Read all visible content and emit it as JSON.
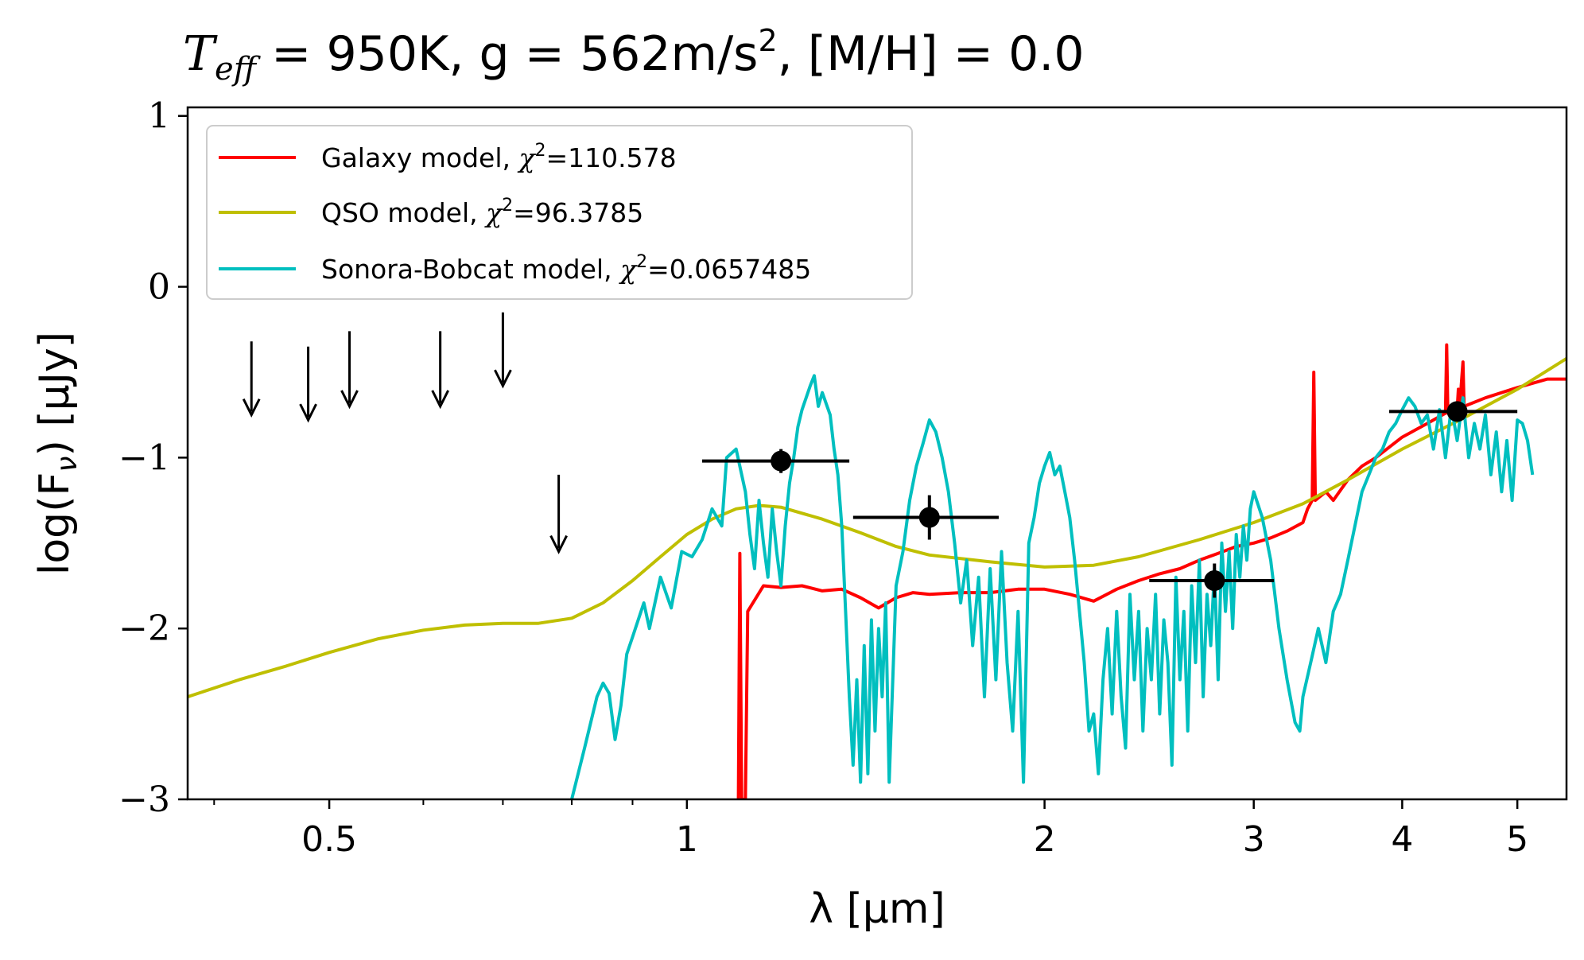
{
  "chart_data": {
    "type": "line",
    "title_parts": {
      "t_symbol": "T",
      "t_sub": "eff",
      "rest_a": " = 950K, g = 562m/s",
      "rest_sup": "2",
      "rest_b": ", [M/H] = 0.0"
    },
    "xlabel": "λ [μm]",
    "ylabel": "log(F",
    "ylabel_sub": "ν",
    "ylabel_tail": ") [μJy]",
    "xscale": "log",
    "xlim": [
      0.38,
      5.5
    ],
    "ylim": [
      -3,
      1.05
    ],
    "x_major_ticks": [
      {
        "value": 0.5,
        "label": "0.5"
      },
      {
        "value": 1,
        "label": "1"
      },
      {
        "value": 2,
        "label": "2"
      },
      {
        "value": 3,
        "label": "3"
      },
      {
        "value": 4,
        "label": "4"
      },
      {
        "value": 5,
        "label": "5"
      }
    ],
    "x_minor_ticks": [
      0.4,
      0.6,
      0.7,
      0.8,
      0.9
    ],
    "y_ticks": [
      {
        "value": 1,
        "label": "1"
      },
      {
        "value": 0,
        "label": "0"
      },
      {
        "value": -1,
        "label": "−1"
      },
      {
        "value": -2,
        "label": "−2"
      },
      {
        "value": -3,
        "label": "−3"
      }
    ],
    "legend_position": "upper-left",
    "series": [
      {
        "key": "galaxy",
        "legend_label": "Galaxy model, ",
        "chi_value": "=110.578",
        "color": "#ff0000",
        "points": [
          [
            1.105,
            -3.0
          ],
          [
            1.108,
            -1.56
          ],
          [
            1.112,
            -3.0
          ],
          [
            1.12,
            -3.0
          ],
          [
            1.125,
            -1.9
          ],
          [
            1.16,
            -1.75
          ],
          [
            1.2,
            -1.76
          ],
          [
            1.25,
            -1.75
          ],
          [
            1.3,
            -1.78
          ],
          [
            1.35,
            -1.77
          ],
          [
            1.4,
            -1.82
          ],
          [
            1.45,
            -1.88
          ],
          [
            1.5,
            -1.82
          ],
          [
            1.55,
            -1.79
          ],
          [
            1.6,
            -1.8
          ],
          [
            1.7,
            -1.79
          ],
          [
            1.8,
            -1.79
          ],
          [
            1.9,
            -1.77
          ],
          [
            2.0,
            -1.77
          ],
          [
            2.1,
            -1.8
          ],
          [
            2.2,
            -1.84
          ],
          [
            2.3,
            -1.77
          ],
          [
            2.4,
            -1.72
          ],
          [
            2.5,
            -1.68
          ],
          [
            2.6,
            -1.65
          ],
          [
            2.7,
            -1.6
          ],
          [
            2.8,
            -1.56
          ],
          [
            2.9,
            -1.52
          ],
          [
            3.0,
            -1.5
          ],
          [
            3.1,
            -1.47
          ],
          [
            3.2,
            -1.43
          ],
          [
            3.3,
            -1.38
          ],
          [
            3.33,
            -1.3
          ],
          [
            3.36,
            -1.25
          ],
          [
            3.37,
            -0.5
          ],
          [
            3.38,
            -1.25
          ],
          [
            3.45,
            -1.2
          ],
          [
            3.5,
            -1.25
          ],
          [
            3.6,
            -1.13
          ],
          [
            3.7,
            -1.05
          ],
          [
            3.8,
            -1.0
          ],
          [
            4.0,
            -0.88
          ],
          [
            4.2,
            -0.8
          ],
          [
            4.35,
            -0.74
          ],
          [
            4.36,
            -0.34
          ],
          [
            4.37,
            -0.74
          ],
          [
            4.45,
            -0.72
          ],
          [
            4.46,
            -0.6
          ],
          [
            4.47,
            -0.71
          ],
          [
            4.5,
            -0.44
          ],
          [
            4.51,
            -0.7
          ],
          [
            4.7,
            -0.65
          ],
          [
            5.0,
            -0.59
          ],
          [
            5.3,
            -0.54
          ],
          [
            5.5,
            -0.54
          ]
        ]
      },
      {
        "key": "qso",
        "legend_label": "QSO model, ",
        "chi_value": "=96.3785",
        "color": "#bfbf00",
        "points": [
          [
            0.38,
            -2.4
          ],
          [
            0.42,
            -2.3
          ],
          [
            0.46,
            -2.22
          ],
          [
            0.5,
            -2.14
          ],
          [
            0.55,
            -2.06
          ],
          [
            0.6,
            -2.01
          ],
          [
            0.65,
            -1.98
          ],
          [
            0.7,
            -1.97
          ],
          [
            0.75,
            -1.97
          ],
          [
            0.8,
            -1.94
          ],
          [
            0.85,
            -1.85
          ],
          [
            0.9,
            -1.72
          ],
          [
            0.95,
            -1.58
          ],
          [
            1.0,
            -1.45
          ],
          [
            1.05,
            -1.36
          ],
          [
            1.1,
            -1.3
          ],
          [
            1.15,
            -1.28
          ],
          [
            1.2,
            -1.29
          ],
          [
            1.3,
            -1.36
          ],
          [
            1.4,
            -1.44
          ],
          [
            1.5,
            -1.52
          ],
          [
            1.6,
            -1.57
          ],
          [
            1.8,
            -1.61
          ],
          [
            2.0,
            -1.64
          ],
          [
            2.2,
            -1.63
          ],
          [
            2.4,
            -1.58
          ],
          [
            2.7,
            -1.48
          ],
          [
            3.0,
            -1.38
          ],
          [
            3.3,
            -1.27
          ],
          [
            3.6,
            -1.13
          ],
          [
            4.0,
            -0.95
          ],
          [
            4.5,
            -0.77
          ],
          [
            5.0,
            -0.6
          ],
          [
            5.5,
            -0.42
          ]
        ]
      },
      {
        "key": "sonora",
        "legend_label": "Sonora-Bobcat model, ",
        "chi_value": "=0.0657485",
        "color": "#00bfbf",
        "points": [
          [
            0.8,
            -3.0
          ],
          [
            0.82,
            -2.7
          ],
          [
            0.84,
            -2.4
          ],
          [
            0.85,
            -2.32
          ],
          [
            0.86,
            -2.38
          ],
          [
            0.87,
            -2.65
          ],
          [
            0.88,
            -2.45
          ],
          [
            0.89,
            -2.15
          ],
          [
            0.9,
            -2.05
          ],
          [
            0.92,
            -1.85
          ],
          [
            0.93,
            -2.0
          ],
          [
            0.95,
            -1.7
          ],
          [
            0.97,
            -1.88
          ],
          [
            0.99,
            -1.55
          ],
          [
            1.01,
            -1.58
          ],
          [
            1.03,
            -1.48
          ],
          [
            1.05,
            -1.3
          ],
          [
            1.07,
            -1.4
          ],
          [
            1.08,
            -1.0
          ],
          [
            1.1,
            -0.95
          ],
          [
            1.12,
            -1.2
          ],
          [
            1.13,
            -1.45
          ],
          [
            1.14,
            -1.65
          ],
          [
            1.15,
            -1.25
          ],
          [
            1.16,
            -1.5
          ],
          [
            1.17,
            -1.7
          ],
          [
            1.18,
            -1.3
          ],
          [
            1.19,
            -1.55
          ],
          [
            1.2,
            -1.75
          ],
          [
            1.21,
            -1.4
          ],
          [
            1.22,
            -1.15
          ],
          [
            1.23,
            -1.0
          ],
          [
            1.24,
            -0.82
          ],
          [
            1.25,
            -0.72
          ],
          [
            1.27,
            -0.58
          ],
          [
            1.28,
            -0.52
          ],
          [
            1.29,
            -0.7
          ],
          [
            1.3,
            -0.62
          ],
          [
            1.32,
            -0.75
          ],
          [
            1.33,
            -0.95
          ],
          [
            1.34,
            -1.1
          ],
          [
            1.35,
            -1.4
          ],
          [
            1.36,
            -1.9
          ],
          [
            1.37,
            -2.4
          ],
          [
            1.38,
            -2.8
          ],
          [
            1.39,
            -2.3
          ],
          [
            1.4,
            -2.9
          ],
          [
            1.41,
            -2.1
          ],
          [
            1.42,
            -2.85
          ],
          [
            1.43,
            -1.95
          ],
          [
            1.44,
            -2.6
          ],
          [
            1.45,
            -2.0
          ],
          [
            1.46,
            -2.4
          ],
          [
            1.47,
            -1.85
          ],
          [
            1.48,
            -2.9
          ],
          [
            1.5,
            -1.75
          ],
          [
            1.52,
            -1.55
          ],
          [
            1.54,
            -1.25
          ],
          [
            1.56,
            -1.05
          ],
          [
            1.58,
            -0.92
          ],
          [
            1.6,
            -0.78
          ],
          [
            1.62,
            -0.85
          ],
          [
            1.64,
            -1.0
          ],
          [
            1.66,
            -1.2
          ],
          [
            1.68,
            -1.5
          ],
          [
            1.7,
            -1.85
          ],
          [
            1.72,
            -1.6
          ],
          [
            1.74,
            -2.1
          ],
          [
            1.76,
            -1.7
          ],
          [
            1.78,
            -2.4
          ],
          [
            1.8,
            -1.65
          ],
          [
            1.82,
            -2.3
          ],
          [
            1.84,
            -1.55
          ],
          [
            1.86,
            -2.2
          ],
          [
            1.88,
            -2.6
          ],
          [
            1.9,
            -1.9
          ],
          [
            1.92,
            -2.9
          ],
          [
            1.94,
            -1.5
          ],
          [
            1.96,
            -1.35
          ],
          [
            1.98,
            -1.15
          ],
          [
            2.0,
            -1.05
          ],
          [
            2.02,
            -0.97
          ],
          [
            2.04,
            -1.1
          ],
          [
            2.06,
            -1.05
          ],
          [
            2.08,
            -1.2
          ],
          [
            2.1,
            -1.35
          ],
          [
            2.12,
            -1.6
          ],
          [
            2.14,
            -1.9
          ],
          [
            2.16,
            -2.2
          ],
          [
            2.18,
            -2.6
          ],
          [
            2.2,
            -2.5
          ],
          [
            2.22,
            -2.85
          ],
          [
            2.24,
            -2.3
          ],
          [
            2.26,
            -2.0
          ],
          [
            2.28,
            -2.5
          ],
          [
            2.3,
            -1.9
          ],
          [
            2.32,
            -2.4
          ],
          [
            2.34,
            -2.7
          ],
          [
            2.36,
            -1.8
          ],
          [
            2.38,
            -2.3
          ],
          [
            2.4,
            -1.9
          ],
          [
            2.42,
            -2.6
          ],
          [
            2.44,
            -2.0
          ],
          [
            2.46,
            -2.3
          ],
          [
            2.48,
            -1.8
          ],
          [
            2.5,
            -2.5
          ],
          [
            2.52,
            -1.95
          ],
          [
            2.54,
            -2.2
          ],
          [
            2.56,
            -2.8
          ],
          [
            2.58,
            -1.7
          ],
          [
            2.6,
            -2.3
          ],
          [
            2.62,
            -1.9
          ],
          [
            2.64,
            -2.6
          ],
          [
            2.66,
            -1.75
          ],
          [
            2.68,
            -2.2
          ],
          [
            2.7,
            -1.6
          ],
          [
            2.72,
            -2.4
          ],
          [
            2.74,
            -1.8
          ],
          [
            2.76,
            -2.1
          ],
          [
            2.78,
            -1.65
          ],
          [
            2.8,
            -2.3
          ],
          [
            2.82,
            -1.5
          ],
          [
            2.84,
            -1.9
          ],
          [
            2.86,
            -1.55
          ],
          [
            2.88,
            -2.0
          ],
          [
            2.9,
            -1.45
          ],
          [
            2.92,
            -1.7
          ],
          [
            2.94,
            -1.4
          ],
          [
            2.96,
            -1.6
          ],
          [
            2.98,
            -1.3
          ],
          [
            3.0,
            -1.2
          ],
          [
            3.05,
            -1.35
          ],
          [
            3.1,
            -1.6
          ],
          [
            3.15,
            -2.0
          ],
          [
            3.2,
            -2.3
          ],
          [
            3.25,
            -2.55
          ],
          [
            3.28,
            -2.6
          ],
          [
            3.3,
            -2.4
          ],
          [
            3.35,
            -2.2
          ],
          [
            3.4,
            -2.0
          ],
          [
            3.45,
            -2.2
          ],
          [
            3.5,
            -1.9
          ],
          [
            3.55,
            -1.8
          ],
          [
            3.6,
            -1.6
          ],
          [
            3.65,
            -1.4
          ],
          [
            3.7,
            -1.2
          ],
          [
            3.75,
            -1.1
          ],
          [
            3.8,
            -1.0
          ],
          [
            3.85,
            -0.95
          ],
          [
            3.9,
            -0.85
          ],
          [
            3.95,
            -0.8
          ],
          [
            4.0,
            -0.72
          ],
          [
            4.05,
            -0.65
          ],
          [
            4.1,
            -0.7
          ],
          [
            4.15,
            -0.8
          ],
          [
            4.2,
            -0.75
          ],
          [
            4.25,
            -0.95
          ],
          [
            4.3,
            -0.72
          ],
          [
            4.35,
            -1.0
          ],
          [
            4.4,
            -0.7
          ],
          [
            4.45,
            -0.9
          ],
          [
            4.5,
            -0.65
          ],
          [
            4.55,
            -1.0
          ],
          [
            4.6,
            -0.8
          ],
          [
            4.65,
            -0.95
          ],
          [
            4.7,
            -0.75
          ],
          [
            4.75,
            -1.1
          ],
          [
            4.8,
            -0.85
          ],
          [
            4.85,
            -1.2
          ],
          [
            4.9,
            -0.9
          ],
          [
            4.95,
            -1.25
          ],
          [
            5.0,
            -0.78
          ],
          [
            5.05,
            -0.8
          ],
          [
            5.1,
            -0.9
          ],
          [
            5.15,
            -1.1
          ]
        ]
      }
    ],
    "data_points": [
      {
        "x": 1.2,
        "y": -1.02,
        "xlo": 1.03,
        "xhi": 1.37,
        "yerr": 0.07
      },
      {
        "x": 1.6,
        "y": -1.35,
        "xlo": 1.38,
        "xhi": 1.83,
        "yerr": 0.13
      },
      {
        "x": 2.78,
        "y": -1.72,
        "xlo": 2.45,
        "xhi": 3.12,
        "yerr": 0.1
      },
      {
        "x": 4.45,
        "y": -0.73,
        "xlo": 3.9,
        "xhi": 5.0,
        "yerr": 0.04
      }
    ],
    "upper_limits": [
      {
        "x": 0.43,
        "y_top": -0.32,
        "y_bottom": -0.75
      },
      {
        "x": 0.48,
        "y_top": -0.35,
        "y_bottom": -0.78
      },
      {
        "x": 0.52,
        "y_top": -0.26,
        "y_bottom": -0.7
      },
      {
        "x": 0.62,
        "y_top": -0.26,
        "y_bottom": -0.7
      },
      {
        "x": 0.7,
        "y_top": -0.15,
        "y_bottom": -0.58
      },
      {
        "x": 0.78,
        "y_top": -1.1,
        "y_bottom": -1.55
      }
    ]
  }
}
